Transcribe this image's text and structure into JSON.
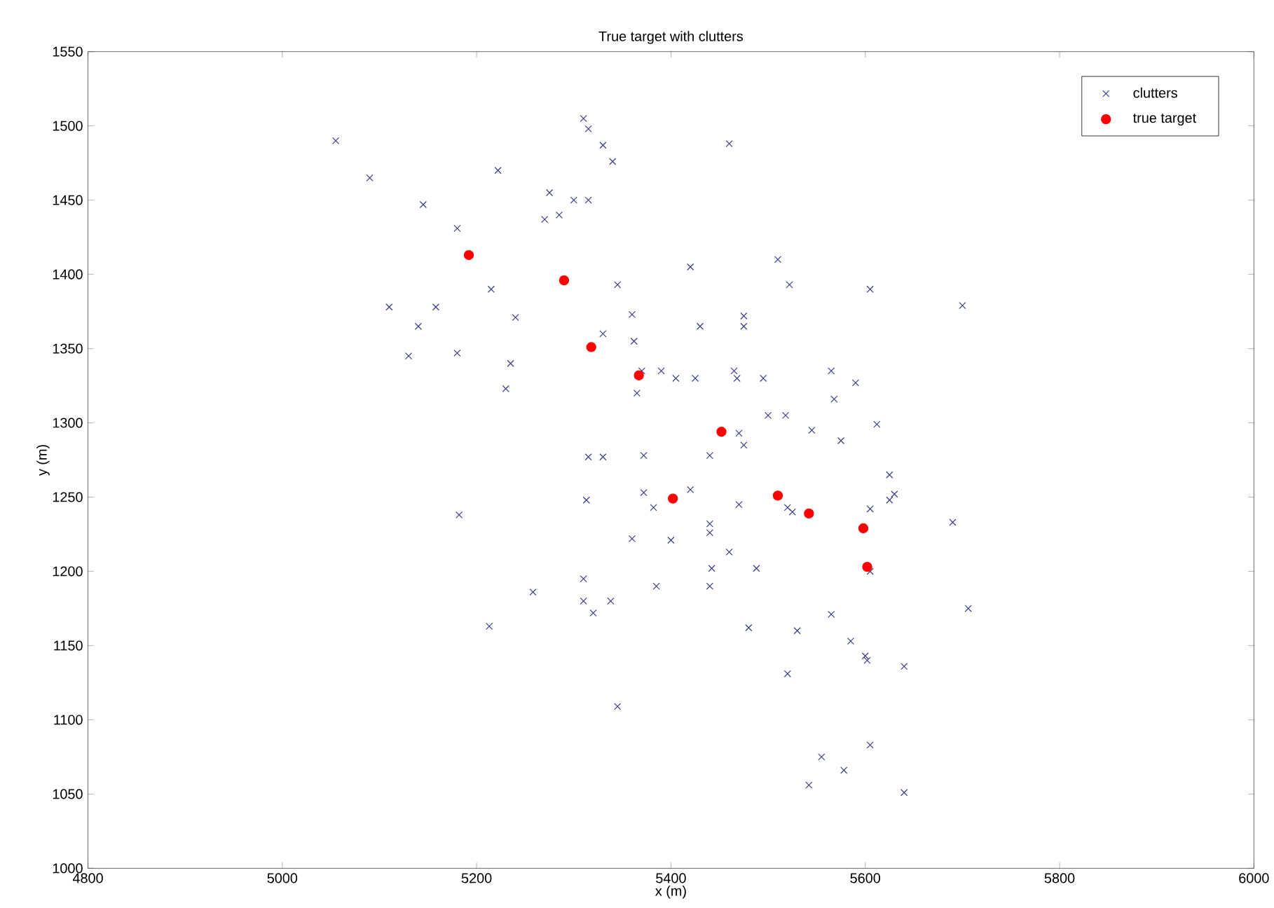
{
  "chart_data": {
    "type": "scatter",
    "title": "True target with clutters",
    "xlabel": "x (m)",
    "ylabel": "y (m)",
    "xlim": [
      4800,
      6000
    ],
    "ylim": [
      1000,
      1550
    ],
    "xticks": [
      4800,
      5000,
      5200,
      5400,
      5600,
      5800,
      6000
    ],
    "yticks": [
      1000,
      1050,
      1100,
      1150,
      1200,
      1250,
      1300,
      1350,
      1400,
      1450,
      1500,
      1550
    ],
    "legend": "top right",
    "grid": false,
    "series": [
      {
        "name": "clutters",
        "color": "#3a3a8c",
        "marker": "cross",
        "x": [
          5055,
          5090,
          5145,
          5222,
          5180,
          5275,
          5270,
          5285,
          5300,
          5315,
          5310,
          5315,
          5330,
          5340,
          5460,
          5110,
          5140,
          5158,
          5130,
          5180,
          5215,
          5240,
          5235,
          5230,
          5182,
          5345,
          5330,
          5360,
          5362,
          5365,
          5370,
          5390,
          5405,
          5425,
          5420,
          5430,
          5465,
          5468,
          5475,
          5475,
          5495,
          5510,
          5522,
          5565,
          5568,
          5575,
          5590,
          5605,
          5612,
          5700,
          5500,
          5518,
          5545,
          5470,
          5475,
          5440,
          5372,
          5372,
          5382,
          5330,
          5315,
          5313,
          5420,
          5440,
          5440,
          5460,
          5470,
          5520,
          5525,
          5605,
          5625,
          5630,
          5625,
          5605,
          5690,
          5706,
          5360,
          5400,
          5385,
          5440,
          5442,
          5488,
          5480,
          5530,
          5520,
          5565,
          5585,
          5600,
          5602,
          5640,
          5310,
          5310,
          5320,
          5338,
          5258,
          5213,
          5345,
          5555,
          5578,
          5605,
          5542,
          5640
        ],
        "values": [
          1490,
          1465,
          1447,
          1470,
          1431,
          1455,
          1437,
          1440,
          1450,
          1450,
          1505,
          1498,
          1487,
          1476,
          1488,
          1378,
          1365,
          1378,
          1345,
          1347,
          1390,
          1371,
          1340,
          1323,
          1238,
          1393,
          1360,
          1373,
          1355,
          1320,
          1335,
          1335,
          1330,
          1330,
          1405,
          1365,
          1335,
          1330,
          1372,
          1365,
          1330,
          1410,
          1393,
          1335,
          1316,
          1288,
          1327,
          1390,
          1299,
          1379,
          1305,
          1305,
          1295,
          1293,
          1285,
          1278,
          1278,
          1253,
          1243,
          1277,
          1277,
          1248,
          1255,
          1232,
          1226,
          1213,
          1245,
          1243,
          1240,
          1242,
          1265,
          1252,
          1248,
          1200,
          1233,
          1175,
          1222,
          1221,
          1190,
          1190,
          1202,
          1202,
          1162,
          1160,
          1131,
          1171,
          1153,
          1143,
          1140,
          1136,
          1195,
          1180,
          1172,
          1180,
          1186,
          1163,
          1109,
          1075,
          1066,
          1083,
          1056,
          1051
        ]
      },
      {
        "name": "true target",
        "color": "#ff0000",
        "marker": "circle",
        "x": [
          5192,
          5290,
          5318,
          5367,
          5452,
          5402,
          5510,
          5542,
          5598,
          5602
        ],
        "values": [
          1413,
          1396,
          1351,
          1332,
          1294,
          1249,
          1251,
          1239,
          1229,
          1203
        ]
      }
    ]
  }
}
